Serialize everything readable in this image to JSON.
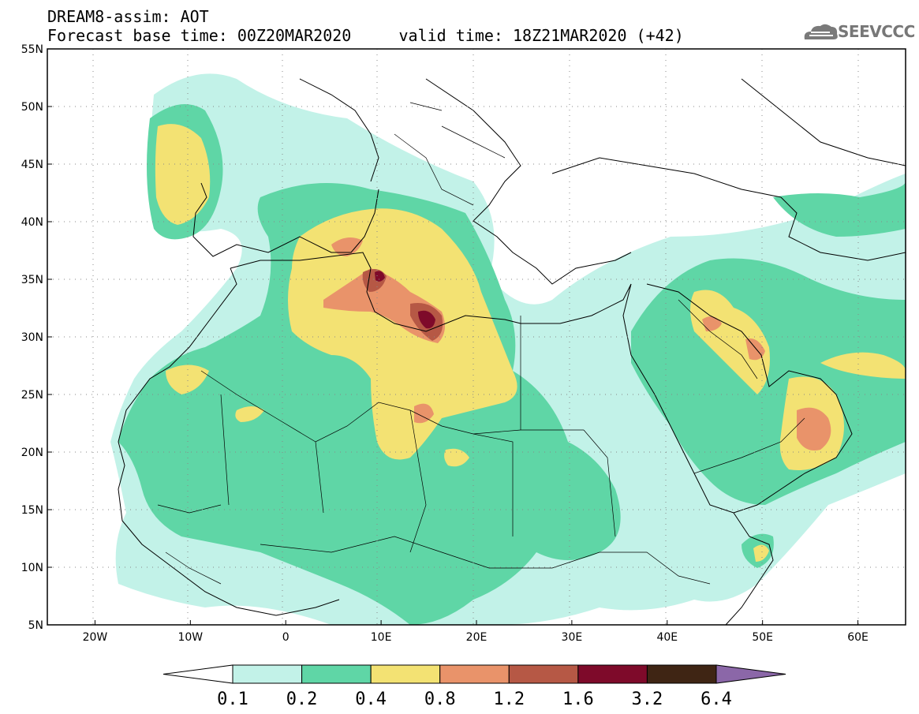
{
  "title": {
    "line1": "DREAM8-assim: AOT",
    "line2": "Forecast base time: 00Z20MAR2020     valid time: 18Z21MAR2020 (+42)"
  },
  "logo": {
    "text": "SEEVCCC",
    "color": "#7a7a7a"
  },
  "map": {
    "lon_range": [
      -25,
      65
    ],
    "lat_range": [
      5,
      55
    ],
    "lat_ticks": [
      {
        "value": 55,
        "label": "55N"
      },
      {
        "value": 50,
        "label": "50N"
      },
      {
        "value": 45,
        "label": "45N"
      },
      {
        "value": 40,
        "label": "40N"
      },
      {
        "value": 35,
        "label": "35N"
      },
      {
        "value": 30,
        "label": "30N"
      },
      {
        "value": 25,
        "label": "25N"
      },
      {
        "value": 20,
        "label": "20N"
      },
      {
        "value": 15,
        "label": "15N"
      },
      {
        "value": 10,
        "label": "10N"
      },
      {
        "value": 5,
        "label": "5N"
      }
    ],
    "lon_ticks": [
      {
        "value": -20,
        "label": "20W"
      },
      {
        "value": -10,
        "label": "10W"
      },
      {
        "value": 0,
        "label": "0"
      },
      {
        "value": 10,
        "label": "10E"
      },
      {
        "value": 20,
        "label": "20E"
      },
      {
        "value": 30,
        "label": "30E"
      },
      {
        "value": 40,
        "label": "40E"
      },
      {
        "value": 50,
        "label": "50E"
      },
      {
        "value": 60,
        "label": "60E"
      }
    ],
    "gridlines": "dotted",
    "colors": {
      "0.1": "#c2f2e8",
      "0.2": "#5fd6a6",
      "0.4": "#f3e273",
      "0.8": "#e9936a",
      "1.2": "#b65845",
      "1.6": "#7e0a2a",
      "3.2": "#3f2514"
    }
  },
  "colorbar": {
    "labels": [
      "0.1",
      "0.2",
      "0.4",
      "0.8",
      "1.2",
      "1.6",
      "3.2",
      "6.4"
    ],
    "colors": [
      "#ffffff",
      "#c2f2e8",
      "#5fd6a6",
      "#f3e273",
      "#e9936a",
      "#b65845",
      "#7e0a2a",
      "#3f2514",
      "#8b67a8"
    ]
  }
}
